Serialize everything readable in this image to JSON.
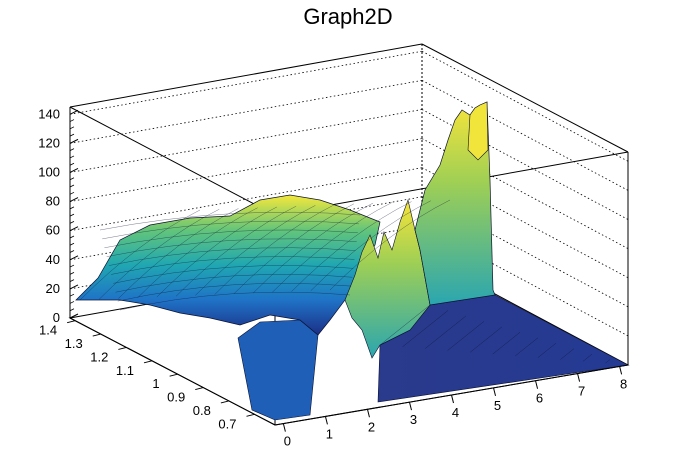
{
  "chart_data": {
    "type": "surface",
    "title": "Graph2D",
    "xlabel": "",
    "ylabel": "",
    "zlabel": "",
    "x_ticks": [
      "0",
      "1",
      "2",
      "3",
      "4",
      "5",
      "6",
      "7",
      "8"
    ],
    "y_ticks": [
      "0.7",
      "0.8",
      "0.9",
      "1",
      "1.1",
      "1.2",
      "1.3",
      "1.4"
    ],
    "z_ticks": [
      "0",
      "20",
      "40",
      "60",
      "80",
      "100",
      "120",
      "140"
    ],
    "xlim": [
      -0.2,
      8.2
    ],
    "ylim": [
      0.62,
      1.42
    ],
    "zlim": [
      0,
      145
    ],
    "grid": true,
    "colormap": "viridis-like",
    "surface_profile_far_edge": [
      {
        "x": 0.0,
        "z": 10
      },
      {
        "x": 0.5,
        "z": 25
      },
      {
        "x": 1.0,
        "z": 60
      },
      {
        "x": 1.5,
        "z": 70
      },
      {
        "x": 2.0,
        "z": 66
      },
      {
        "x": 2.5,
        "z": 62
      },
      {
        "x": 3.0,
        "z": 70
      },
      {
        "x": 3.5,
        "z": 78
      },
      {
        "x": 4.0,
        "z": 90
      },
      {
        "x": 4.5,
        "z": 128
      },
      {
        "x": 4.8,
        "z": 140
      },
      {
        "x": 5.0,
        "z": 4
      },
      {
        "x": 8.0,
        "z": 2
      }
    ]
  }
}
